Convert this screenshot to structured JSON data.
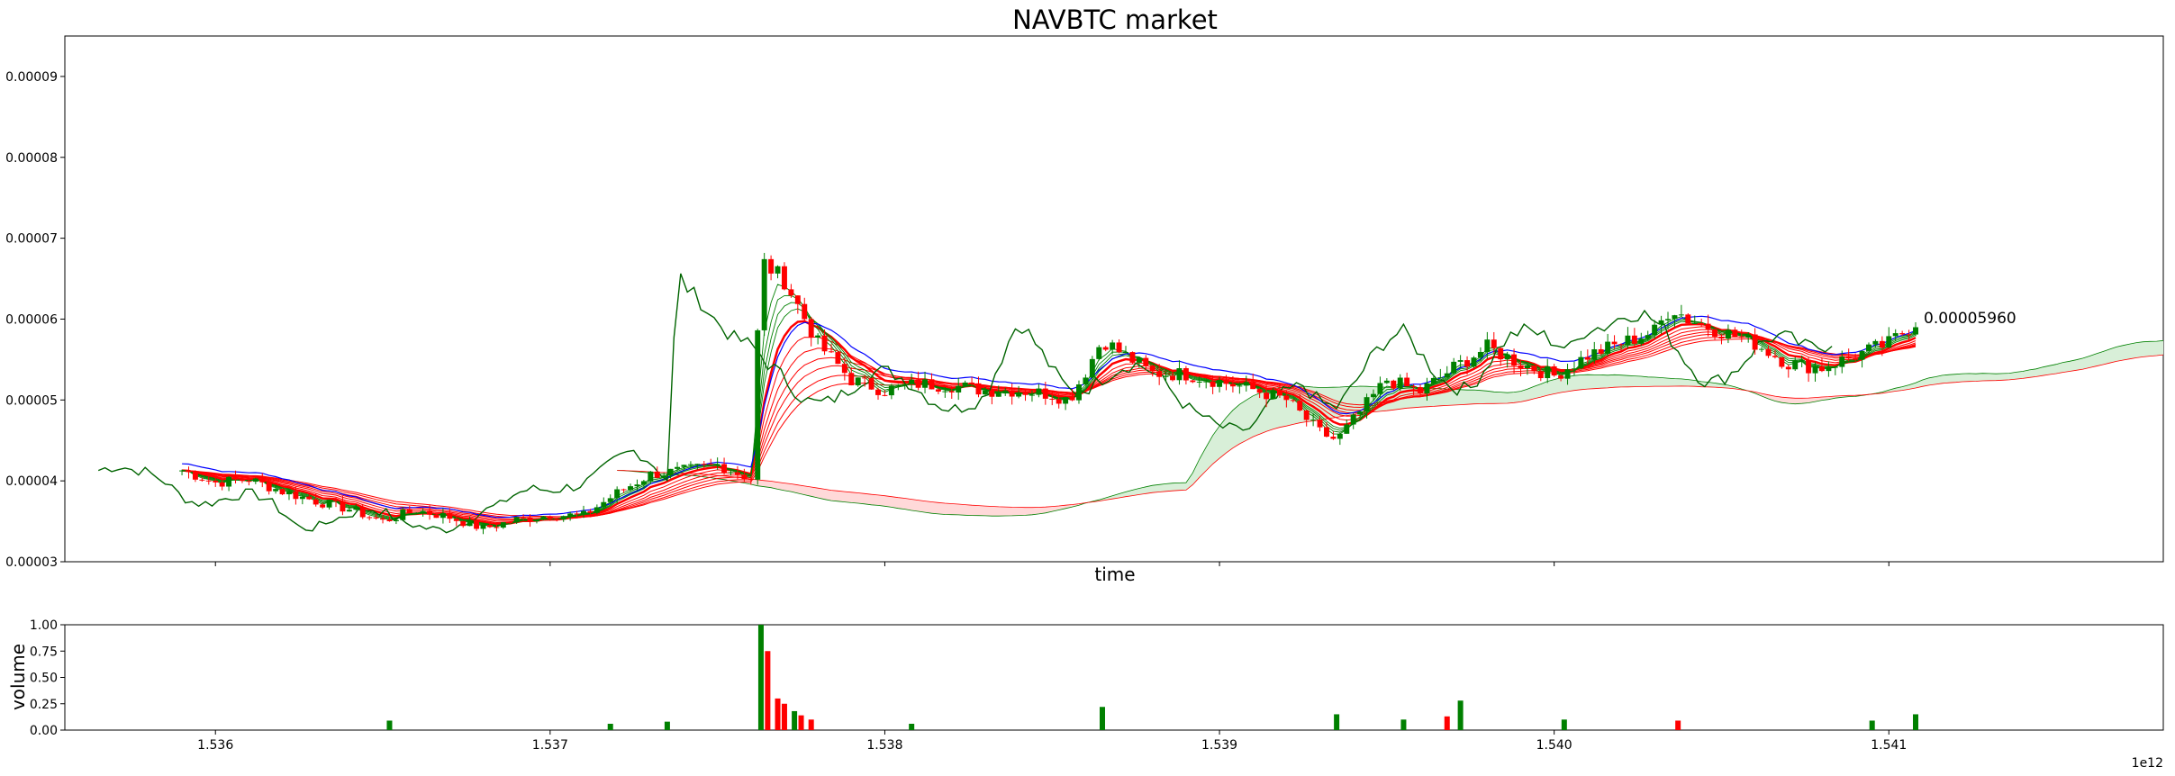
{
  "chart_data": [
    {
      "type": "candlestick",
      "title": "NAVBTC market",
      "xlabel": "time",
      "ylabel": "",
      "ylim": [
        3e-05,
        9.5e-05
      ],
      "y_ticks": [
        "0.00003",
        "0.00004",
        "0.00005",
        "0.00006",
        "0.00007",
        "0.00008",
        "0.00009"
      ],
      "last_price_label": "0.00005960",
      "colors": {
        "up": "#008000",
        "down": "#ff0000",
        "line_blue": "#0000ff",
        "line_green": "#006400",
        "cloud_up": "#d8efd8",
        "cloud_down": "#ffd9d9"
      },
      "grid": false,
      "price_path": [
        [
          1535.9,
          4.13e-05
        ],
        [
          1536.0,
          3.98e-05
        ],
        [
          1536.1,
          4.02e-05
        ],
        [
          1536.2,
          3.87e-05
        ],
        [
          1536.3,
          3.75e-05
        ],
        [
          1536.4,
          3.65e-05
        ],
        [
          1536.5,
          3.5e-05
        ],
        [
          1536.6,
          3.64e-05
        ],
        [
          1536.7,
          3.55e-05
        ],
        [
          1536.8,
          3.41e-05
        ],
        [
          1536.9,
          3.52e-05
        ],
        [
          1537.0,
          3.58e-05
        ],
        [
          1537.1,
          3.57e-05
        ],
        [
          1537.2,
          3.85e-05
        ],
        [
          1537.3,
          4.08e-05
        ],
        [
          1537.4,
          4.13e-05
        ],
        [
          1537.5,
          4.2e-05
        ],
        [
          1537.6,
          4.03e-05
        ],
        [
          1537.63,
          6.72e-05
        ],
        [
          1537.7,
          6.48e-05
        ],
        [
          1537.8,
          5.7e-05
        ],
        [
          1537.9,
          5.25e-05
        ],
        [
          1538.0,
          5.12e-05
        ],
        [
          1538.1,
          5.2e-05
        ],
        [
          1538.2,
          5.18e-05
        ],
        [
          1538.3,
          5.12e-05
        ],
        [
          1538.4,
          5.12e-05
        ],
        [
          1538.5,
          5.07e-05
        ],
        [
          1538.55,
          5e-05
        ],
        [
          1538.6,
          5.35e-05
        ],
        [
          1538.65,
          5.75e-05
        ],
        [
          1538.7,
          5.6e-05
        ],
        [
          1538.8,
          5.33e-05
        ],
        [
          1538.9,
          5.32e-05
        ],
        [
          1539.0,
          5.23e-05
        ],
        [
          1539.1,
          5.13e-05
        ],
        [
          1539.2,
          5e-05
        ],
        [
          1539.3,
          4.6e-05
        ],
        [
          1539.35,
          4.5e-05
        ],
        [
          1539.4,
          4.75e-05
        ],
        [
          1539.5,
          5.25e-05
        ],
        [
          1539.6,
          5.1e-05
        ],
        [
          1539.7,
          5.4e-05
        ],
        [
          1539.8,
          5.65e-05
        ],
        [
          1539.9,
          5.45e-05
        ],
        [
          1540.0,
          5.3e-05
        ],
        [
          1540.1,
          5.55e-05
        ],
        [
          1540.2,
          5.7e-05
        ],
        [
          1540.3,
          5.85e-05
        ],
        [
          1540.35,
          6.15e-05
        ],
        [
          1540.4,
          6e-05
        ],
        [
          1540.5,
          5.85e-05
        ],
        [
          1540.6,
          5.7e-05
        ],
        [
          1540.7,
          5.45e-05
        ],
        [
          1540.8,
          5.4e-05
        ],
        [
          1540.9,
          5.55e-05
        ],
        [
          1541.0,
          5.7e-05
        ],
        [
          1541.08,
          5.96e-05
        ]
      ]
    },
    {
      "type": "bar",
      "ylabel": "volume",
      "ylim": [
        0,
        1.0
      ],
      "y_ticks": [
        "0.00",
        "0.25",
        "0.50",
        "0.75",
        "1.00"
      ],
      "x_ticks": [
        "1.536",
        "1.537",
        "1.538",
        "1.539",
        "1.540",
        "1.541"
      ],
      "x_multiplier": "1e12",
      "bars": [
        [
          1536.52,
          0.09,
          "up"
        ],
        [
          1537.18,
          0.06,
          "up"
        ],
        [
          1537.35,
          0.08,
          "up"
        ],
        [
          1537.63,
          1.0,
          "up"
        ],
        [
          1537.65,
          0.75,
          "down"
        ],
        [
          1537.68,
          0.3,
          "down"
        ],
        [
          1537.7,
          0.25,
          "down"
        ],
        [
          1537.73,
          0.18,
          "up"
        ],
        [
          1537.75,
          0.14,
          "down"
        ],
        [
          1537.78,
          0.1,
          "down"
        ],
        [
          1538.08,
          0.06,
          "up"
        ],
        [
          1538.65,
          0.22,
          "up"
        ],
        [
          1539.35,
          0.15,
          "up"
        ],
        [
          1539.55,
          0.1,
          "up"
        ],
        [
          1539.68,
          0.13,
          "down"
        ],
        [
          1539.72,
          0.28,
          "up"
        ],
        [
          1540.03,
          0.1,
          "up"
        ],
        [
          1540.37,
          0.09,
          "down"
        ],
        [
          1540.95,
          0.09,
          "up"
        ],
        [
          1541.08,
          0.15,
          "up"
        ]
      ]
    }
  ]
}
